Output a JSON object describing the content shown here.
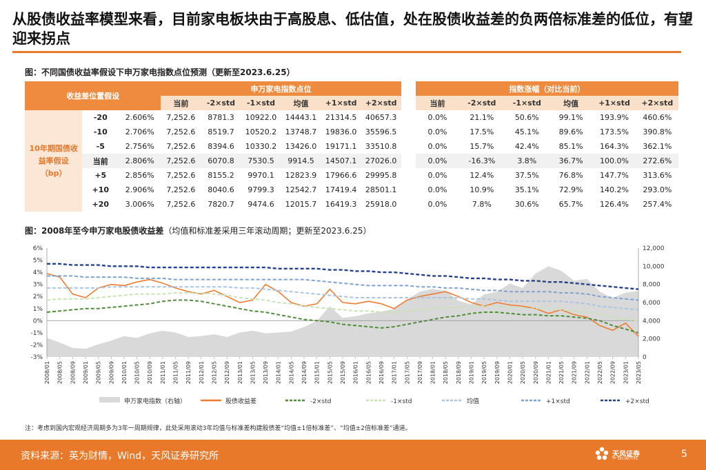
{
  "slide": {
    "title": "从股债收益率模型来看，目前家电板块由于高股息、低估值，处在股债收益差的负两倍标准差的低位，有望迎来拐点",
    "table_caption": "图：不同国债收益率假设下申万家电指数点位预测（更新至2023.6.25）",
    "chart_caption_main": "图：2008年至今申万家电股债收益差",
    "chart_caption_sub": "（均值和标准差采用三年滚动周期；更新至2023.6.25）",
    "note": "注：考虑到国内宏观经济周期多为3年一周期规律，此处采用滚动3年均值与标准差构建股债差“均值±1倍标准差”、“均值±2倍标准差”通道。",
    "source": "资料来源：英为财情，Wind，天风证券研究所",
    "logo_text": "天风证券",
    "logo_sub": "TF SECURITIES",
    "page": "5"
  },
  "table": {
    "h_left": "收益差位置假设",
    "h_mid": "申万家电指数点位",
    "h_right": "指数涨幅（对比当前）",
    "side_label_lines": [
      "10年期国债收",
      "益率假设",
      "（bp）"
    ],
    "sub_headers": [
      "当前",
      "-2×std",
      "-1×std",
      "均值",
      "+1×std",
      "+2×std"
    ],
    "rows": [
      {
        "bp": "-20",
        "yld": "2.606%",
        "pts": [
          "7,252.6",
          "8781.3",
          "10922.0",
          "14443.1",
          "21314.5",
          "40657.3"
        ],
        "chg": [
          "0.0%",
          "21.1%",
          "50.6%",
          "99.1%",
          "193.9%",
          "460.6%"
        ]
      },
      {
        "bp": "-10",
        "yld": "2.706%",
        "pts": [
          "7,252.6",
          "8519.7",
          "10520.2",
          "13748.7",
          "19836.0",
          "35596.5"
        ],
        "chg": [
          "0.0%",
          "17.5%",
          "45.1%",
          "89.6%",
          "173.5%",
          "390.8%"
        ]
      },
      {
        "bp": "-5",
        "yld": "2.756%",
        "pts": [
          "7,252.6",
          "8394.6",
          "10330.2",
          "13426.0",
          "19171.1",
          "33510.8"
        ],
        "chg": [
          "0.0%",
          "15.7%",
          "42.4%",
          "85.1%",
          "164.3%",
          "362.1%"
        ]
      },
      {
        "bp": "当前",
        "yld": "2.806%",
        "pts": [
          "7,252.6",
          "6070.8",
          "7530.5",
          "9914.5",
          "14507.1",
          "27026.0"
        ],
        "chg": [
          "0.0%",
          "-16.3%",
          "3.8%",
          "36.7%",
          "100.0%",
          "272.6%"
        ]
      },
      {
        "bp": "+5",
        "yld": "2.856%",
        "pts": [
          "7,252.6",
          "8155.2",
          "9970.1",
          "12823.9",
          "17966.6",
          "29995.8"
        ],
        "chg": [
          "0.0%",
          "12.4%",
          "37.5%",
          "76.8%",
          "147.7%",
          "313.6%"
        ]
      },
      {
        "bp": "+10",
        "yld": "2.906%",
        "pts": [
          "7,252.6",
          "8040.6",
          "9799.3",
          "12542.7",
          "17419.4",
          "28501.1"
        ],
        "chg": [
          "0.0%",
          "10.9%",
          "35.1%",
          "72.9%",
          "140.2%",
          "293.0%"
        ]
      },
      {
        "bp": "+20",
        "yld": "3.006%",
        "pts": [
          "7,252.6",
          "7820.7",
          "9474.6",
          "12015.7",
          "16419.3",
          "25918.0"
        ],
        "chg": [
          "0.0%",
          "7.8%",
          "30.6%",
          "65.7%",
          "126.4%",
          "257.4%"
        ]
      }
    ]
  },
  "chart_data": {
    "type": "line",
    "title": "2008年至今申万家电股债收益差",
    "x": [
      "2008/01",
      "2008/05",
      "2008/09",
      "2009/01",
      "2009/05",
      "2009/09",
      "2010/01",
      "2010/05",
      "2010/09",
      "2011/01",
      "2011/05",
      "2011/09",
      "2012/01",
      "2012/05",
      "2012/09",
      "2013/01",
      "2013/05",
      "2013/09",
      "2014/01",
      "2014/05",
      "2014/09",
      "2015/01",
      "2015/05",
      "2015/09",
      "2016/01",
      "2016/05",
      "2016/09",
      "2017/01",
      "2017/05",
      "2017/09",
      "2018/01",
      "2018/05",
      "2018/09",
      "2019/01",
      "2019/05",
      "2019/09",
      "2020/01",
      "2020/05",
      "2020/09",
      "2021/01",
      "2021/05",
      "2021/09",
      "2022/01",
      "2022/05",
      "2022/09",
      "2023/01",
      "2023/05"
    ],
    "y_left_ticks": [
      "6%",
      "5%",
      "4%",
      "3%",
      "2%",
      "1%",
      "0%",
      "-1%",
      "-2%",
      "-3%"
    ],
    "y_left_range": [
      -3,
      6
    ],
    "y_right_ticks": [
      "12,000",
      "10,000",
      "8,000",
      "6,000",
      "4,000",
      "2,000",
      "0"
    ],
    "y_right_range": [
      0,
      12000
    ],
    "colors": {
      "index": "#d9d9d9",
      "spread": "#ed7d31",
      "m2": "#4e8c3a",
      "m1": "#c9e3b4",
      "mean": "#a9c4e4",
      "p1": "#7ea1d4",
      "p2": "#23408e"
    },
    "series": [
      {
        "name": "申万家电指数（右轴）",
        "axis": "right",
        "style": "area",
        "values": [
          2100,
          1600,
          1000,
          900,
          1400,
          1800,
          2300,
          2100,
          2600,
          2900,
          2700,
          2200,
          2300,
          2500,
          2200,
          2700,
          2900,
          2600,
          2700,
          2800,
          3300,
          4000,
          5600,
          4300,
          4500,
          4800,
          5000,
          5300,
          6300,
          7200,
          7500,
          7300,
          6200,
          5800,
          6900,
          7200,
          8100,
          7600,
          9200,
          10000,
          9500,
          8400,
          8600,
          7200,
          6500,
          7100,
          7250
        ]
      },
      {
        "name": "股债收益差",
        "axis": "left",
        "style": "line",
        "values": [
          3.9,
          3.6,
          2.2,
          1.9,
          2.7,
          3.0,
          2.9,
          3.2,
          3.4,
          3.1,
          2.7,
          2.4,
          2.2,
          2.5,
          2.0,
          1.5,
          1.7,
          3.0,
          2.4,
          1.5,
          1.2,
          1.4,
          2.6,
          1.5,
          1.4,
          1.6,
          1.4,
          1.0,
          1.7,
          2.0,
          2.2,
          2.4,
          2.0,
          1.5,
          1.2,
          1.5,
          1.3,
          1.2,
          1.0,
          0.6,
          0.9,
          0.5,
          0.3,
          -0.4,
          -0.8,
          -0.2,
          -1.3
        ]
      },
      {
        "name": "-2×std",
        "axis": "left",
        "style": "dash",
        "values": [
          0.7,
          0.8,
          0.9,
          1.0,
          1.0,
          1.1,
          1.2,
          1.3,
          1.4,
          1.6,
          1.7,
          1.7,
          1.6,
          1.4,
          1.2,
          1.0,
          0.8,
          0.7,
          0.5,
          0.3,
          0.1,
          0.0,
          -0.1,
          -0.3,
          -0.4,
          -0.5,
          -0.6,
          -0.5,
          -0.3,
          -0.1,
          0.1,
          0.3,
          0.4,
          0.6,
          0.7,
          0.7,
          0.6,
          0.5,
          0.5,
          0.4,
          0.4,
          0.3,
          0.2,
          0.0,
          -0.4,
          -0.7,
          -1.0
        ]
      },
      {
        "name": "-1×std",
        "axis": "left",
        "style": "dash",
        "values": [
          1.7,
          1.8,
          1.8,
          1.8,
          1.9,
          2.0,
          2.1,
          2.2,
          2.2,
          2.2,
          2.3,
          2.3,
          2.3,
          2.2,
          2.1,
          1.9,
          1.8,
          1.7,
          1.5,
          1.4,
          1.2,
          1.1,
          1.0,
          0.9,
          0.8,
          0.8,
          0.7,
          0.7,
          0.8,
          0.9,
          1.0,
          1.1,
          1.1,
          1.2,
          1.2,
          1.2,
          1.1,
          1.0,
          1.0,
          1.0,
          0.9,
          0.8,
          0.7,
          0.5,
          0.3,
          0.1,
          0.0
        ]
      },
      {
        "name": "均值",
        "axis": "left",
        "style": "dash",
        "values": [
          2.7,
          2.7,
          2.7,
          2.7,
          2.7,
          2.8,
          2.8,
          2.8,
          2.8,
          2.8,
          2.8,
          2.8,
          2.8,
          2.8,
          2.8,
          2.7,
          2.7,
          2.6,
          2.5,
          2.4,
          2.3,
          2.2,
          2.1,
          2.0,
          1.9,
          1.9,
          1.9,
          1.9,
          1.9,
          1.9,
          1.9,
          1.9,
          1.9,
          1.8,
          1.8,
          1.7,
          1.6,
          1.6,
          1.6,
          1.6,
          1.6,
          1.5,
          1.4,
          1.2,
          1.1,
          1.0,
          0.9
        ]
      },
      {
        "name": "+1×std",
        "axis": "left",
        "style": "dash",
        "values": [
          3.7,
          3.7,
          3.7,
          3.6,
          3.6,
          3.6,
          3.6,
          3.5,
          3.5,
          3.5,
          3.4,
          3.4,
          3.4,
          3.4,
          3.4,
          3.4,
          3.4,
          3.4,
          3.4,
          3.4,
          3.4,
          3.3,
          3.2,
          3.1,
          3.0,
          2.9,
          2.9,
          2.9,
          2.9,
          2.8,
          2.8,
          2.7,
          2.7,
          2.6,
          2.5,
          2.5,
          2.4,
          2.4,
          2.4,
          2.4,
          2.3,
          2.3,
          2.2,
          2.0,
          1.9,
          1.8,
          1.7
        ]
      },
      {
        "name": "+2×std",
        "axis": "left",
        "style": "dash",
        "values": [
          4.7,
          4.7,
          4.6,
          4.6,
          4.6,
          4.5,
          4.5,
          4.5,
          4.4,
          4.4,
          4.4,
          4.4,
          4.4,
          4.4,
          4.4,
          4.4,
          4.4,
          4.4,
          4.3,
          4.3,
          4.3,
          4.3,
          4.2,
          4.2,
          4.1,
          4.1,
          4.0,
          4.0,
          3.9,
          3.8,
          3.7,
          3.7,
          3.6,
          3.5,
          3.5,
          3.4,
          3.4,
          3.3,
          3.3,
          3.2,
          3.2,
          3.1,
          3.0,
          2.9,
          2.8,
          2.7,
          2.6
        ]
      }
    ]
  }
}
